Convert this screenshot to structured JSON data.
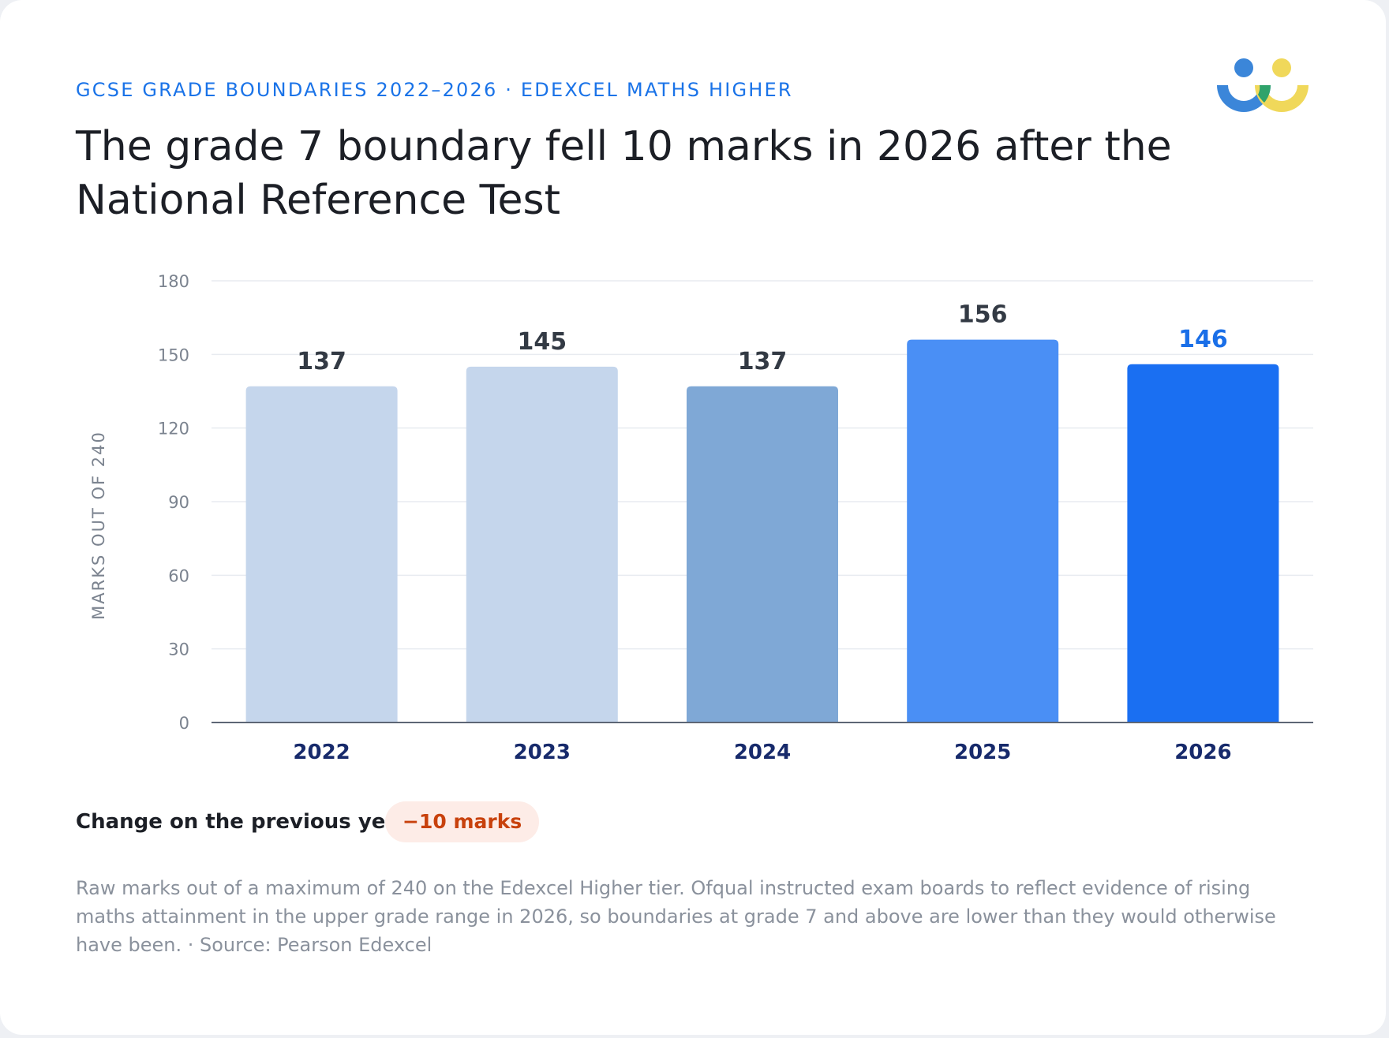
{
  "header": {
    "kicker": "GCSE GRADE BOUNDARIES 2022–2026 · EDEXCEL MATHS HIGHER",
    "title": "The grade 7 boundary fell 10 marks in 2026 after the National Reference Test"
  },
  "logo": {
    "icon": "people-logo-icon",
    "colors": [
      "#3b86d9",
      "#f0d85a",
      "#2fa36b"
    ]
  },
  "chart_data": {
    "type": "bar",
    "categories": [
      "2022",
      "2023",
      "2024",
      "2025",
      "2026"
    ],
    "values": [
      137,
      145,
      137,
      156,
      146
    ],
    "bar_colors": [
      "#c5d6ec",
      "#c5d6ec",
      "#7fa8d6",
      "#4a8ff5",
      "#1a6ff2"
    ],
    "label_colors": [
      "#333a44",
      "#333a44",
      "#333a44",
      "#333a44",
      "#1a6fe8"
    ],
    "title": "",
    "xlabel": "",
    "ylabel": "MARKS OUT OF 240",
    "ylim": [
      0,
      180
    ],
    "yticks": [
      0,
      30,
      60,
      90,
      120,
      150,
      180
    ],
    "grid": true,
    "legend": "none"
  },
  "change": {
    "label": "Change on the previous year",
    "value": "−10 marks"
  },
  "footnote": {
    "text": "Raw marks out of a maximum of 240 on the Edexcel Higher tier. Ofqual instructed exam boards to reflect evidence of rising maths attainment in the upper grade range in 2026, so boundaries at grade 7 and above are lower than they would otherwise have been.",
    "separator": " · ",
    "source": "Source: Pearson Edexcel"
  }
}
